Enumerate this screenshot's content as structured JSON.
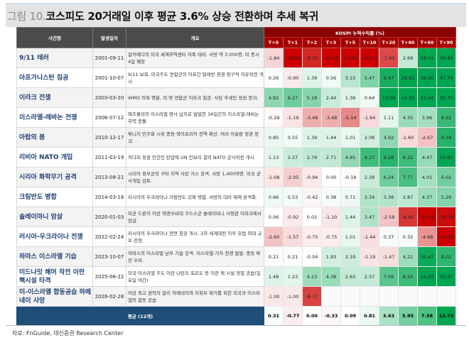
{
  "title": {
    "number": "그림 10.",
    "text": "코스피도 20거래일 이후 평균 3.6% 상승 전환하며 추세 복귀"
  },
  "headers": {
    "event": "사건명",
    "date": "발생일자",
    "summary": "개요",
    "kospi": "KOSPI 누적수익률 (%)",
    "periods": [
      "T+0",
      "T+1",
      "T+2",
      "T+3",
      "T+5",
      "T+10",
      "T+20",
      "T+40",
      "T+60",
      "T+90"
    ]
  },
  "rows": [
    {
      "event": "9/11 테러",
      "date": "2001-09-11",
      "summary": "알카에다의 미국 세계무역센터 자폭 테러. 사망 약 3,000명, 미 증시 4일 폐장",
      "values": [
        -1.84,
        -13.64,
        -9.35,
        -12.43,
        -11.95,
        -14.27,
        -7.83,
        2.68,
        18.01,
        30.49
      ]
    },
    {
      "event": "아프가니스탄 침공",
      "date": "2001-10-07",
      "summary": "9/11 보복. 미국주도 연합군의 아프간 탈레반 정권 항구적 자유작전 개시.",
      "values": [
        0.26,
        -0.9,
        1.39,
        0.56,
        3.15,
        5.47,
        9.97,
        28.61,
        38.56,
        47.74
      ]
    },
    {
      "event": "이라크 전쟁",
      "date": "2003-03-20",
      "summary": "WMD 의혹 명분, 미·영 연합군 이라크 침공. 사담 후세인 정권 붕괴.",
      "values": [
        4.92,
        6.27,
        5.18,
        2.44,
        1.38,
        0.64,
        13.09,
        14.32,
        21.44,
        29.75
      ]
    },
    {
      "event": "이스라엘-레바논 전쟁",
      "date": "2006-07-12",
      "summary": "헤즈볼라의 이스라엘 병사 납치로 발발한 34일간의 이스라엘-레바논 무력 충돌.",
      "values": [
        -0.29,
        -1.19,
        -3.48,
        -3.48,
        -5.14,
        -1.64,
        1.11,
        4.35,
        3.96,
        8.62
      ]
    },
    {
      "event": "아랍의 봄",
      "date": "2010-12-17",
      "summary": "튀니지 민주화 시위 중동·북아프리카 전역 확산. 여러 이슬람 정권 붕괴.",
      "values": [
        0.85,
        0.55,
        1.39,
        1.44,
        1.01,
        2.08,
        4.92,
        -1.6,
        -2.67,
        9.39
      ]
    },
    {
      "event": "리비아 NATO 개입",
      "date": "2011-03-19",
      "summary": "카다피 정권 민간인 탄압에 UN 안보리 결의 NATO 군사작전 개시.",
      "values": [
        1.13,
        2.27,
        2.79,
        2.71,
        4.85,
        8.27,
        9.26,
        8.22,
        4.47,
        10.83
      ]
    },
    {
      "event": "시리아 화학무기 공격",
      "date": "2013-08-21",
      "summary": "시리아 정부군의 구타 지역 사린 가스 공격. 사망 1,400여명. 미국 군사개입 검토.",
      "values": [
        -1.08,
        -2.05,
        -0.94,
        0.0,
        -0.18,
        2.39,
        6.24,
        7.77,
        4.01,
        6.02
      ]
    },
    {
      "event": "크림반도 병합",
      "date": "2014-03-18",
      "summary": "러시아의 우크라이나 크림반도 강제 병합. 서방의 대러 제재 본격화.",
      "values": [
        0.66,
        0.53,
        -0.42,
        0.38,
        0.71,
        3.34,
        3.36,
        2.87,
        4.37,
        5.26
      ]
    },
    {
      "event": "솔레이마니 암살",
      "date": "2020-01-03",
      "summary": "미군 드론이 이란 혁명수비대 쿠드스군 솔레이마니 사령관 이라크에서 암살.",
      "values": [
        0.06,
        -0.92,
        0.02,
        -1.1,
        1.44,
        3.47,
        -2.58,
        -8.65,
        -21.03,
        -10.54
      ]
    },
    {
      "event": "러시아-우크라이나 전쟁",
      "date": "2022-02-24",
      "summary": "러시아의 우크라이나 전면 침공 개시. 2차 세계대전 이후 유럽 최대 규모 전쟁.",
      "values": [
        -2.6,
        -1.57,
        -0.75,
        -0.75,
        1.01,
        -1.44,
        0.37,
        0.32,
        -4.68,
        -14.23
      ]
    },
    {
      "event": "하마스 이스라엘 기습",
      "date": "2023-10-07",
      "summary": "하마스의 이스라엘 남부 기습 공격. 이스라엘-가자 전쟁 발발. 중동 확전 우려.",
      "values": [
        0.21,
        0.21,
        -0.04,
        1.93,
        2.19,
        -1.19,
        -1.47,
        4.22,
        10.47,
        9.02
      ]
    },
    {
      "event": "미드나잇 해머 작전 이란 핵시설 타격",
      "date": "2025-06-22",
      "summary": "미국·이스라엘 주도 이란 나탄즈·포르도 등 이란 핵 시설 정밀 공습(일요일 야간)",
      "values": [
        1.48,
        1.23,
        4.23,
        4.38,
        2.63,
        2.57,
        7.06,
        8.33,
        14.03,
        32.37
      ]
    },
    {
      "event": "미-이스라엘 합동공습 하메네이 사망",
      "date": "2026-02-28",
      "summary": "이란 최고 권력자 알리 하메네이와 지휘부 제거를 위한 미국과 이스라엘의 합동 공습",
      "values": [
        -1.0,
        -1.0,
        -8.17,
        null,
        null,
        null,
        null,
        null,
        null,
        null
      ]
    }
  ],
  "average": {
    "label": "평균 (12개)",
    "values": [
      0.31,
      -0.77,
      0.0,
      -0.33,
      0.09,
      0.81,
      3.63,
      5.95,
      7.58,
      13.73
    ]
  },
  "source": "자료: FnGuide, 대신증권 Research Center",
  "colors": {
    "negative": "#cc0000",
    "positive": "#00a650",
    "header_dark": "#4b4b4b",
    "kospi_header": "#8b0000",
    "avg_label": "#1f4e79",
    "event_text": "#1f3f72"
  }
}
